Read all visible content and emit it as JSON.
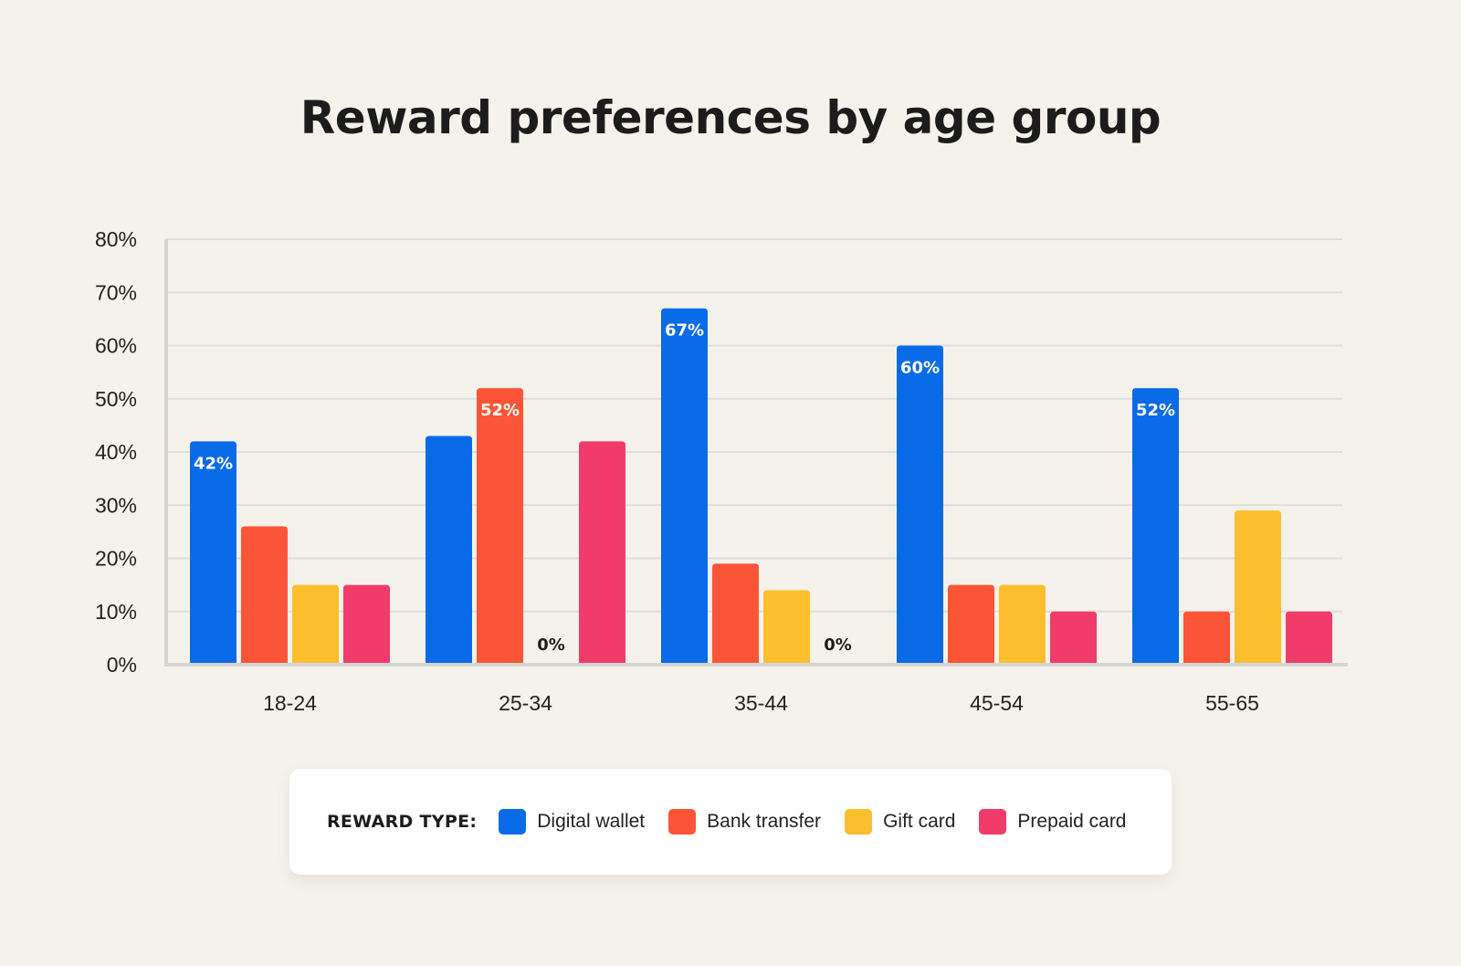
{
  "chart_data": {
    "type": "bar",
    "title": "Reward preferences by age group",
    "xlabel": "",
    "ylabel": "",
    "categories": [
      "18-24",
      "25-34",
      "35-44",
      "45-54",
      "55-65"
    ],
    "ylim": [
      0,
      80
    ],
    "yticks": [
      0,
      10,
      20,
      30,
      40,
      50,
      60,
      70,
      80
    ],
    "ytick_labels": [
      "0%",
      "10%",
      "20%",
      "30%",
      "40%",
      "50%",
      "60%",
      "70%",
      "80%"
    ],
    "grid": true,
    "series": [
      {
        "name": "Digital wallet",
        "color": "#0a6be8",
        "values": [
          42,
          43,
          67,
          60,
          52
        ]
      },
      {
        "name": "Bank transfer",
        "color": "#fc5436",
        "values": [
          26,
          52,
          19,
          15,
          10
        ]
      },
      {
        "name": "Gift card",
        "color": "#fcbe2c",
        "values": [
          15,
          0,
          14,
          15,
          29
        ]
      },
      {
        "name": "Prepaid card",
        "color": "#f13c6b",
        "values": [
          15,
          42,
          0,
          10,
          10
        ]
      }
    ],
    "data_labels": [
      {
        "category": "18-24",
        "series": "Digital wallet",
        "text": "42%"
      },
      {
        "category": "25-34",
        "series": "Bank transfer",
        "text": "52%"
      },
      {
        "category": "25-34",
        "series": "Gift card",
        "text": "0%"
      },
      {
        "category": "35-44",
        "series": "Digital wallet",
        "text": "67%"
      },
      {
        "category": "35-44",
        "series": "Prepaid card",
        "text": "0%"
      },
      {
        "category": "45-54",
        "series": "Digital wallet",
        "text": "60%"
      },
      {
        "category": "55-65",
        "series": "Digital wallet",
        "text": "52%"
      }
    ],
    "legend": {
      "heading": "REWARD TYPE:",
      "placement": "bottom",
      "items": [
        "Digital wallet",
        "Bank transfer",
        "Gift card",
        "Prepaid card"
      ]
    }
  }
}
